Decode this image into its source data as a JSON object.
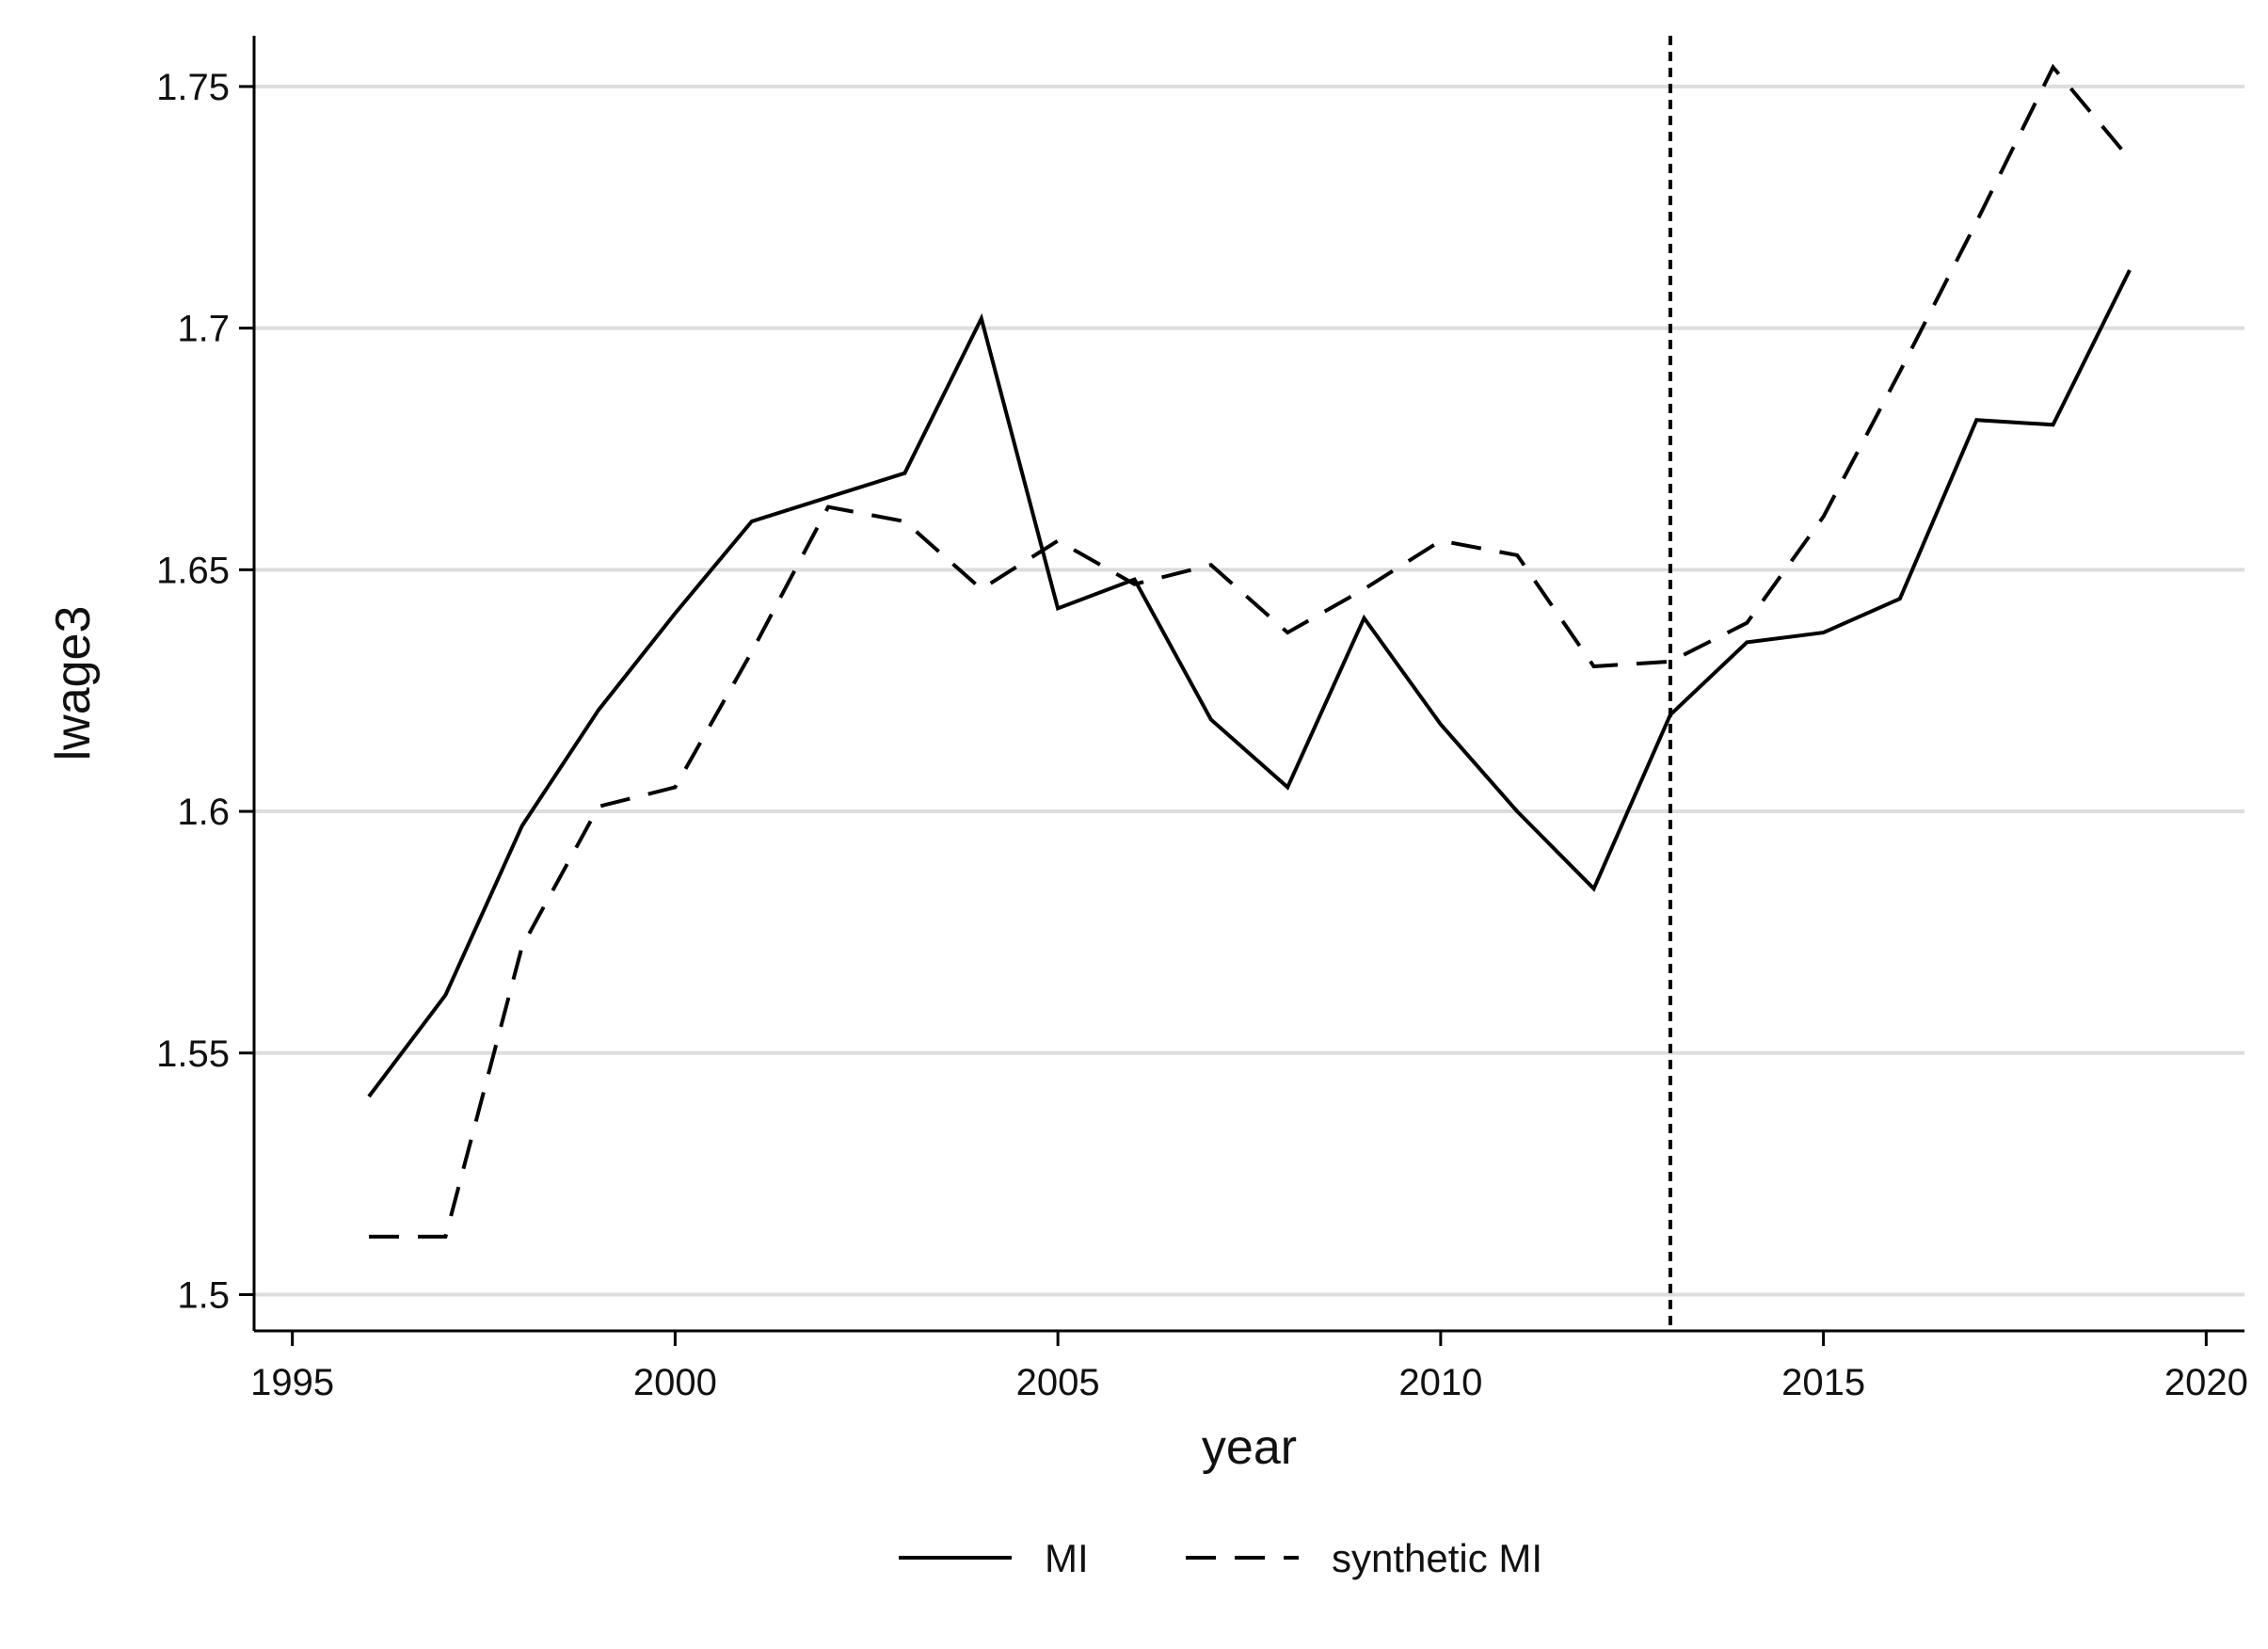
{
  "chart_data": {
    "type": "line",
    "title": "",
    "xlabel": "year",
    "ylabel": "lwage3",
    "xlim": [
      1994.5,
      2020.5
    ],
    "ylim": [
      1.4925,
      1.7605
    ],
    "xticks": [
      1995,
      2000,
      2005,
      2010,
      2015,
      2020
    ],
    "xtick_labels": [
      "1995",
      "2000",
      "2005",
      "2010",
      "2015",
      "2020"
    ],
    "yticks": [
      1.5,
      1.55,
      1.6,
      1.65,
      1.7,
      1.75
    ],
    "ytick_labels": [
      "1.5",
      "1.55",
      "1.6",
      "1.65",
      "1.7",
      "1.75"
    ],
    "grid": "horizontal",
    "legend_position": "bottom",
    "reference_line": {
      "x": 2013,
      "style": "dotted"
    },
    "x": [
      1996,
      1997,
      1998,
      1999,
      2000,
      2001,
      2002,
      2003,
      2004,
      2005,
      2006,
      2007,
      2008,
      2009,
      2010,
      2011,
      2012,
      2013,
      2014,
      2015,
      2016,
      2017,
      2018,
      2019
    ],
    "series": [
      {
        "name": "MI",
        "style": "solid",
        "color": "#000000",
        "values": [
          1.541,
          1.562,
          1.597,
          1.621,
          1.641,
          1.66,
          1.665,
          1.67,
          1.702,
          1.642,
          1.648,
          1.619,
          1.605,
          1.64,
          1.618,
          1.6,
          1.584,
          1.62,
          1.635,
          1.637,
          1.644,
          1.681,
          1.68,
          1.712
        ]
      },
      {
        "name": "synthetic MI",
        "style": "dashed",
        "color": "#000000",
        "values": [
          1.512,
          1.512,
          1.572,
          1.601,
          1.605,
          1.633,
          1.663,
          1.66,
          1.646,
          1.656,
          1.647,
          1.651,
          1.637,
          1.646,
          1.656,
          1.653,
          1.63,
          1.631,
          1.639,
          1.661,
          1.691,
          1.722,
          1.754,
          1.735
        ]
      }
    ]
  }
}
